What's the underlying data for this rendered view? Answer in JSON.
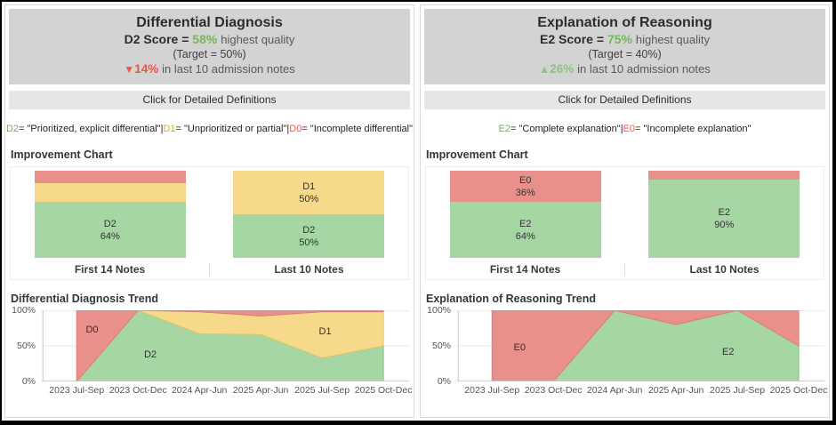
{
  "palette": {
    "green": "#a5d6a3",
    "yellow": "#f6d98b",
    "red": "#e9908c",
    "green_stroke": "#84bd7e",
    "yellow_stroke": "#e5c468",
    "red_stroke": "#dd7c75"
  },
  "panels": [
    {
      "title": "Differential Diagnosis",
      "score": {
        "label": "D2 Score =",
        "value": "58%",
        "suffix": "highest quality",
        "color": "#77b55e"
      },
      "target": "(Target = 50%)",
      "change": {
        "arrow": "▼",
        "value": "14%",
        "suffix": "in last 10 admission notes",
        "direction": "down",
        "color": "#ef5448"
      },
      "definitions_button": "Click for Detailed Definitions",
      "definitions": {
        "separator": " | ",
        "items": [
          {
            "code": "D2",
            "color": "#70ad5c",
            "text": " = \"Prioritized, explicit differential\""
          },
          {
            "code": "D1",
            "color": "#d4a937",
            "text": " = \"Unprioritized or partial\""
          },
          {
            "code": "D0",
            "color": "#ee5a4d",
            "text": " = \"Incomplete differential\""
          }
        ]
      }
    },
    {
      "title": "Explanation of Reasoning",
      "score": {
        "label": "E2 Score =",
        "value": "75%",
        "suffix": "highest quality",
        "color": "#77b55e"
      },
      "target": "(Target = 40%)",
      "change": {
        "arrow": "▲",
        "value": "26%",
        "suffix": "in last 10 admission notes",
        "direction": "up",
        "color": "#8bc47f"
      },
      "definitions_button": "Click for Detailed Definitions",
      "definitions": {
        "separator": " | ",
        "items": [
          {
            "code": "E2",
            "color": "#70ad5c",
            "text": "= \"Complete explanation\""
          },
          {
            "code": "E0",
            "color": "#ee5a4d",
            "text": " = \"Incomplete explanation\""
          }
        ]
      }
    }
  ],
  "chart_data": [
    {
      "type": "bar",
      "stacked": true,
      "title": "Improvement Chart",
      "categories": [
        "First 14 Notes",
        "Last 10 Notes"
      ],
      "ylim": [
        0,
        100
      ],
      "bars": [
        {
          "segments": [
            {
              "name": "D0",
              "value": 14,
              "color": "red",
              "labeled": false
            },
            {
              "name": "D1",
              "value": 22,
              "color": "yellow",
              "labeled": false
            },
            {
              "name": "D2",
              "value": 64,
              "color": "green",
              "labeled": true
            }
          ]
        },
        {
          "segments": [
            {
              "name": "D1",
              "value": 50,
              "color": "yellow",
              "labeled": true
            },
            {
              "name": "D2",
              "value": 50,
              "color": "green",
              "labeled": true
            }
          ]
        }
      ]
    },
    {
      "type": "area",
      "stacked": true,
      "title": "Differential Diagnosis Trend",
      "categories": [
        "2023 Jul-Sep",
        "2023 Oct-Dec",
        "2024 Apr-Jun",
        "2025 Apr-Jun",
        "2025 Jul-Sep",
        "2025 Oct-Dec"
      ],
      "yticks": [
        {
          "label": "100%",
          "value": 100
        },
        {
          "label": "50%",
          "value": 50
        },
        {
          "label": "0%",
          "value": 0
        }
      ],
      "ylim": [
        0,
        100
      ],
      "grid": true,
      "series": [
        {
          "name": "D2",
          "color": "green",
          "values": [
            0,
            100,
            67,
            66,
            33,
            50
          ]
        },
        {
          "name": "D1",
          "color": "yellow",
          "values": [
            0,
            0,
            31,
            26,
            65,
            48
          ]
        },
        {
          "name": "D0",
          "color": "red",
          "values": [
            100,
            0,
            2,
            8,
            2,
            2
          ]
        }
      ],
      "labels": [
        {
          "text": "D0",
          "cat_x": 0.25,
          "level": 72
        },
        {
          "text": "D2",
          "cat_x": 1.2,
          "level": 37
        },
        {
          "text": "D1",
          "cat_x": 4.05,
          "level": 70
        }
      ]
    },
    {
      "type": "bar",
      "stacked": true,
      "title": "Improvement Chart",
      "categories": [
        "First 14 Notes",
        "Last 10 Notes"
      ],
      "ylim": [
        0,
        100
      ],
      "bars": [
        {
          "segments": [
            {
              "name": "E0",
              "value": 36,
              "color": "red",
              "labeled": true
            },
            {
              "name": "E2",
              "value": 64,
              "color": "green",
              "labeled": true
            }
          ]
        },
        {
          "segments": [
            {
              "name": "E0",
              "value": 10,
              "color": "red",
              "labeled": false
            },
            {
              "name": "E2",
              "value": 90,
              "color": "green",
              "labeled": true
            }
          ]
        }
      ]
    },
    {
      "type": "area",
      "stacked": true,
      "title": "Explanation of Reasoning Trend",
      "categories": [
        "2023 Jul-Sep",
        "2023 Oct-Dec",
        "2024 Apr-Jun",
        "2025 Apr-Jun",
        "2025 Jul-Sep",
        "2025 Oct-Dec"
      ],
      "yticks": [
        {
          "label": "100%",
          "value": 100
        },
        {
          "label": "50%",
          "value": 50
        },
        {
          "label": "0%",
          "value": 0
        }
      ],
      "ylim": [
        0,
        100
      ],
      "grid": true,
      "series": [
        {
          "name": "E2",
          "color": "green",
          "values": [
            0,
            0,
            100,
            80,
            100,
            50
          ]
        },
        {
          "name": "E0",
          "color": "red",
          "values": [
            100,
            100,
            0,
            20,
            0,
            50
          ]
        }
      ],
      "labels": [
        {
          "text": "E0",
          "cat_x": 0.45,
          "level": 47
        },
        {
          "text": "E2",
          "cat_x": 3.85,
          "level": 41
        }
      ]
    }
  ]
}
